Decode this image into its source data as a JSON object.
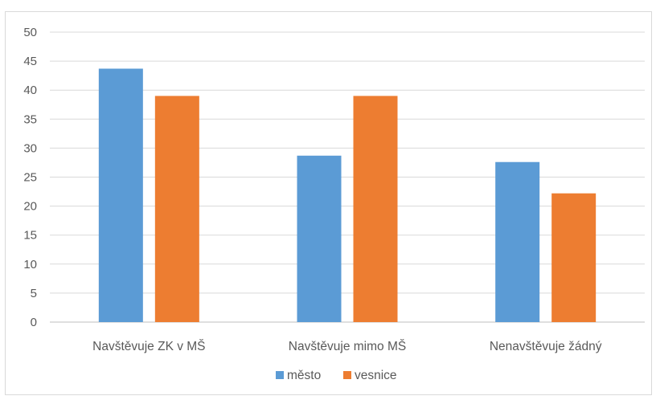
{
  "chart_data": {
    "type": "bar",
    "categories": [
      "Navštěvuje ZK v MŠ",
      "Navštěvuje mimo MŠ",
      "Nenavštěvuje žádný"
    ],
    "series": [
      {
        "name": "město",
        "values": [
          43.7,
          28.7,
          27.6
        ],
        "color": "#5b9bd5"
      },
      {
        "name": "vesnice",
        "values": [
          39.0,
          39.0,
          22.2
        ],
        "color": "#ed7d31"
      }
    ],
    "yticks": [
      "0",
      "5",
      "10",
      "15",
      "20",
      "25",
      "30",
      "35",
      "40",
      "45",
      "50"
    ],
    "ylim": [
      0,
      50
    ],
    "grid": true,
    "legend": "bottom",
    "title": "",
    "xlabel": "",
    "ylabel": ""
  }
}
